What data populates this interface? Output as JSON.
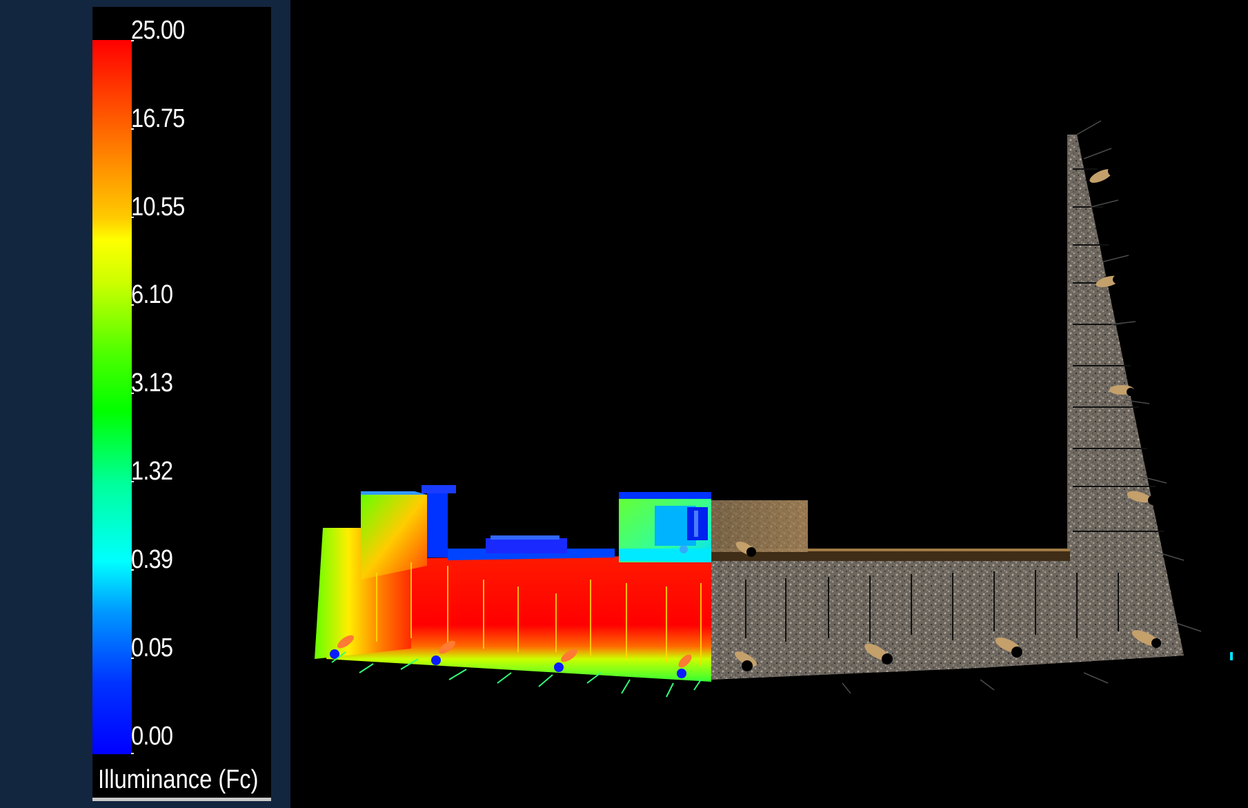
{
  "legend": {
    "ticks": [
      "25.00",
      "16.75",
      "10.55",
      "6.10",
      "3.13",
      "1.32",
      "0.39",
      "0.05",
      "0.00"
    ],
    "title": "Illuminance (Fc)"
  },
  "colors": {
    "app_background": "#13263f",
    "panel_background": "#000000",
    "scale_max": "#ff0000",
    "scale_mid": "#00ff00",
    "scale_min": "#0000ff"
  }
}
